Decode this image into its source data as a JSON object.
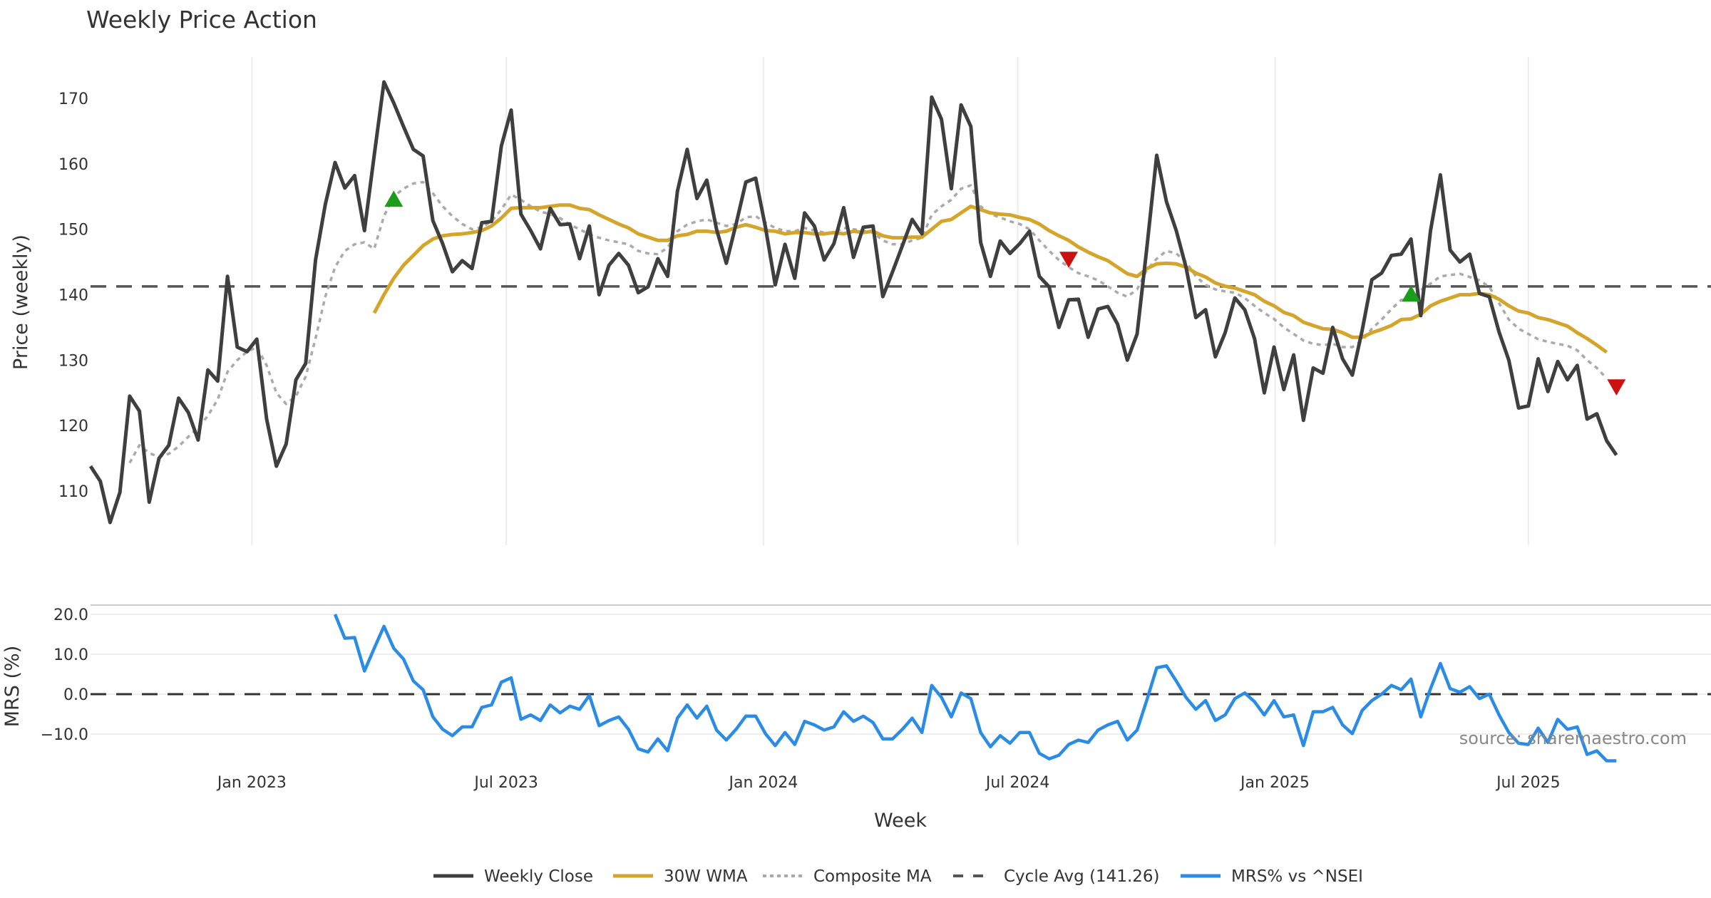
{
  "chart_data": [
    {
      "type": "line",
      "title": "Weekly Price Action",
      "xlabel": "Week",
      "ylabel": "Price (weekly)",
      "ylim": [
        102.5,
        175.5
      ],
      "yticks": [
        "110",
        "120",
        "130",
        "140",
        "150",
        "160",
        "170"
      ],
      "ytick_values": [
        110,
        120,
        130,
        140,
        150,
        160,
        170
      ],
      "x_ticks": [
        {
          "label": "Jan 2023",
          "week": 16.5
        },
        {
          "label": "Jul 2023",
          "week": 42.5
        },
        {
          "label": "Jan 2024",
          "week": 68.8
        },
        {
          "label": "Jul 2024",
          "week": 94.8
        },
        {
          "label": "Jan 2025",
          "week": 121.1
        },
        {
          "label": "Jul 2025",
          "week": 147.0
        },
        {
          "label": "",
          "week": 173.5
        }
      ],
      "grid": true,
      "series": [
        {
          "name": "Weekly Close",
          "color": "#3f3f3f",
          "style": "solid",
          "start_week": 0,
          "values": [
            113.8,
            111.5,
            105.2,
            109.8,
            124.5,
            122.2,
            108.3,
            115.0,
            117.0,
            124.2,
            122.0,
            117.8,
            128.5,
            126.8,
            142.8,
            132.0,
            131.3,
            133.2,
            121.0,
            113.8,
            117.2,
            127.0,
            129.5,
            145.3,
            153.8,
            160.2,
            156.3,
            158.2,
            149.8,
            161.3,
            172.5,
            169.3,
            165.7,
            162.2,
            161.2,
            151.3,
            147.8,
            143.5,
            145.2,
            144.0,
            151.0,
            151.2,
            162.7,
            168.2,
            152.3,
            149.8,
            147.0,
            153.2,
            150.7,
            150.8,
            145.5,
            150.5,
            140.0,
            144.5,
            146.3,
            144.5,
            140.3,
            141.2,
            145.5,
            142.8,
            155.8,
            162.2,
            154.7,
            157.5,
            150.0,
            144.8,
            150.8,
            157.2,
            157.8,
            150.3,
            141.5,
            147.7,
            142.5,
            152.5,
            150.5,
            145.3,
            147.8,
            153.3,
            145.7,
            150.3,
            150.5,
            139.7,
            143.5,
            147.5,
            151.5,
            149.3,
            170.2,
            166.8,
            156.2,
            169.0,
            165.7,
            148.0,
            142.8,
            148.2,
            146.3,
            147.8,
            149.7,
            142.8,
            141.2,
            135.0,
            139.2,
            139.3,
            133.5,
            137.8,
            138.2,
            135.5,
            130.0,
            134.0,
            147.3,
            161.3,
            154.2,
            149.8,
            144.2,
            136.5,
            137.7,
            130.5,
            134.2,
            139.5,
            137.7,
            133.3,
            125.0,
            132.0,
            125.5,
            130.8,
            120.8,
            128.8,
            128.0,
            135.0,
            130.2,
            127.7,
            134.5,
            142.3,
            143.3,
            146.0,
            146.2,
            148.5,
            136.8,
            149.8,
            158.3,
            146.8,
            145.0,
            146.2,
            140.2,
            139.7,
            134.3,
            130.0,
            122.7,
            123.0,
            130.2,
            125.2,
            129.8,
            127.0,
            129.2,
            121.0,
            121.8,
            117.7,
            115.5
          ]
        },
        {
          "name": "30W WMA",
          "color": "#d4a52a",
          "style": "solid",
          "start_week": 29,
          "values": [
            137.2,
            140.0,
            142.5,
            144.5,
            146.0,
            147.5,
            148.5,
            149.0,
            149.2,
            149.3,
            149.5,
            149.8,
            150.5,
            151.7,
            153.2,
            153.3,
            153.3,
            153.3,
            153.5,
            153.7,
            153.7,
            153.2,
            153.0,
            152.2,
            151.5,
            150.8,
            150.2,
            149.3,
            148.8,
            148.3,
            148.3,
            149.0,
            149.2,
            149.7,
            149.7,
            149.5,
            149.7,
            150.3,
            150.7,
            150.3,
            149.8,
            149.7,
            149.3,
            149.5,
            149.5,
            149.3,
            149.3,
            149.5,
            149.3,
            149.7,
            149.5,
            149.7,
            149.0,
            148.7,
            148.7,
            148.8,
            148.8,
            150.0,
            151.2,
            151.5,
            152.5,
            153.5,
            153.0,
            152.5,
            152.3,
            152.2,
            151.8,
            151.5,
            150.8,
            149.8,
            149.0,
            148.3,
            147.3,
            146.5,
            145.8,
            145.2,
            144.2,
            143.2,
            142.8,
            144.0,
            144.7,
            144.8,
            144.7,
            144.2,
            143.3,
            142.7,
            141.8,
            141.3,
            141.0,
            140.5,
            140.0,
            139.0,
            138.3,
            137.3,
            136.8,
            135.8,
            135.3,
            134.8,
            134.7,
            134.2,
            133.5,
            133.5,
            134.2,
            134.7,
            135.3,
            136.2,
            136.3,
            137.0,
            138.3,
            139.0,
            139.5,
            140.0,
            140.0,
            140.2,
            140.0,
            139.3,
            138.3,
            137.5,
            137.2,
            136.5,
            136.2,
            135.7,
            135.2,
            134.2,
            133.3,
            132.3,
            131.2
          ]
        },
        {
          "name": "Composite MA",
          "color": "#aaaaaa",
          "style": "dotted",
          "start_week": 4,
          "values": [
            114.3,
            117.0,
            115.8,
            115.2,
            115.7,
            116.8,
            118.3,
            119.7,
            121.5,
            124.0,
            128.2,
            130.0,
            131.3,
            132.0,
            129.2,
            125.0,
            123.3,
            124.5,
            127.5,
            133.3,
            139.7,
            144.2,
            146.7,
            147.7,
            148.0,
            147.0,
            152.0,
            155.0,
            156.2,
            157.0,
            157.2,
            155.5,
            153.5,
            152.0,
            150.8,
            150.0,
            150.3,
            151.2,
            153.0,
            155.3,
            154.5,
            153.5,
            152.7,
            152.3,
            151.7,
            150.7,
            150.0,
            149.2,
            148.7,
            148.3,
            148.0,
            147.7,
            146.7,
            146.3,
            146.2,
            147.2,
            149.7,
            150.7,
            151.2,
            151.5,
            151.0,
            150.5,
            150.8,
            151.8,
            152.0,
            151.0,
            150.2,
            149.7,
            149.7,
            150.2,
            149.8,
            149.5,
            149.5,
            150.2,
            150.0,
            149.8,
            149.5,
            148.3,
            147.7,
            147.7,
            148.3,
            148.7,
            152.2,
            153.5,
            154.5,
            156.2,
            156.7,
            153.5,
            152.3,
            151.8,
            151.2,
            150.8,
            150.0,
            148.3,
            146.7,
            145.3,
            144.2,
            143.3,
            142.8,
            142.2,
            141.3,
            140.3,
            139.7,
            140.8,
            143.8,
            145.5,
            146.7,
            146.3,
            145.0,
            142.8,
            141.5,
            140.8,
            140.5,
            140.3,
            139.5,
            138.3,
            137.2,
            136.3,
            135.0,
            134.0,
            133.0,
            132.5,
            132.3,
            132.5,
            132.0,
            132.0,
            133.0,
            134.8,
            136.2,
            137.8,
            139.2,
            139.3,
            140.7,
            141.7,
            142.8,
            143.0,
            143.2,
            142.7,
            142.2,
            141.2,
            138.7,
            136.2,
            134.8,
            134.0,
            133.2,
            132.8,
            132.5,
            132.2,
            131.5,
            130.0,
            128.8,
            127.2
          ]
        },
        {
          "name": "Cycle Avg (141.26)",
          "color": "#555555",
          "style": "dashed",
          "value": 141.26
        }
      ],
      "markers": [
        {
          "type": "buy",
          "shape": "triangle-up",
          "color": "#1a9e1a",
          "week": 31,
          "value": 154.5
        },
        {
          "type": "sell",
          "shape": "triangle-down",
          "color": "#cc1111",
          "week": 100,
          "value": 145.5
        },
        {
          "type": "buy",
          "shape": "triangle-up",
          "color": "#1a9e1a",
          "week": 135,
          "value": 140.0
        },
        {
          "type": "sell",
          "shape": "triangle-down",
          "color": "#cc1111",
          "week": 156,
          "value": 126.0
        }
      ]
    },
    {
      "type": "line",
      "title": "",
      "xlabel": "Week",
      "ylabel": "MRS (%)",
      "ylim": [
        -20,
        22.4
      ],
      "yticks": [
        "20.0",
        "10.0",
        "0.0",
        "−10.0"
      ],
      "ytick_values": [
        20,
        10,
        0,
        -10
      ],
      "grid": true,
      "series": [
        {
          "name": "MRS% vs ^NSEI",
          "color": "#2b8ce6",
          "style": "solid",
          "start_week": 25,
          "values": [
            20.0,
            14.0,
            14.2,
            5.8,
            11.5,
            17.0,
            11.5,
            8.8,
            3.3,
            1.1,
            -5.7,
            -8.8,
            -10.4,
            -8.2,
            -8.2,
            -3.3,
            -2.7,
            3.0,
            4.1,
            -6.3,
            -5.2,
            -6.6,
            -2.7,
            -4.7,
            -3.0,
            -3.8,
            -0.3,
            -7.9,
            -6.6,
            -5.7,
            -8.8,
            -13.7,
            -14.5,
            -11.2,
            -14.2,
            -6.0,
            -2.7,
            -6.0,
            -3.0,
            -9.0,
            -11.5,
            -8.8,
            -5.5,
            -5.5,
            -9.9,
            -12.9,
            -9.6,
            -12.6,
            -6.8,
            -7.7,
            -9.0,
            -8.2,
            -4.4,
            -6.8,
            -5.5,
            -7.1,
            -11.2,
            -11.2,
            -8.8,
            -6.0,
            -9.6,
            2.2,
            -0.8,
            -5.7,
            0.3,
            -1.1,
            -9.6,
            -13.2,
            -10.4,
            -12.3,
            -9.6,
            -9.6,
            -14.8,
            -16.2,
            -15.3,
            -12.6,
            -11.5,
            -12.1,
            -9.0,
            -7.7,
            -6.8,
            -11.5,
            -9.0,
            -1.4,
            6.6,
            7.1,
            3.3,
            -0.8,
            -3.8,
            -1.6,
            -6.6,
            -5.2,
            -1.1,
            0.3,
            -1.9,
            -5.2,
            -1.6,
            -5.7,
            -5.2,
            -12.9,
            -4.4,
            -4.4,
            -3.3,
            -7.7,
            -9.9,
            -4.1,
            -1.6,
            0.0,
            2.2,
            1.1,
            3.8,
            -5.7,
            1.4,
            7.7,
            1.4,
            0.5,
            1.9,
            -1.1,
            0.0,
            -5.2,
            -9.6,
            -12.3,
            -12.6,
            -8.5,
            -12.1,
            -6.3,
            -8.8,
            -8.2,
            -15.1,
            -14.2,
            -16.7,
            -16.7
          ]
        },
        {
          "name": "zero-line",
          "color": "#333333",
          "style": "dashed",
          "value": 0
        }
      ]
    }
  ],
  "legend": {
    "placement": "bottom-center",
    "items": [
      {
        "label": "Weekly Close",
        "color": "#3f3f3f",
        "style": "solid"
      },
      {
        "label": "30W WMA",
        "color": "#d4a52a",
        "style": "solid"
      },
      {
        "label": "Composite MA",
        "color": "#aaaaaa",
        "style": "dotted"
      },
      {
        "label": "Cycle Avg (141.26)",
        "color": "#555555",
        "style": "dashed"
      },
      {
        "label": "MRS% vs ^NSEI",
        "color": "#2b8ce6",
        "style": "solid"
      }
    ]
  },
  "watermark": "source: sharemaestro.com"
}
